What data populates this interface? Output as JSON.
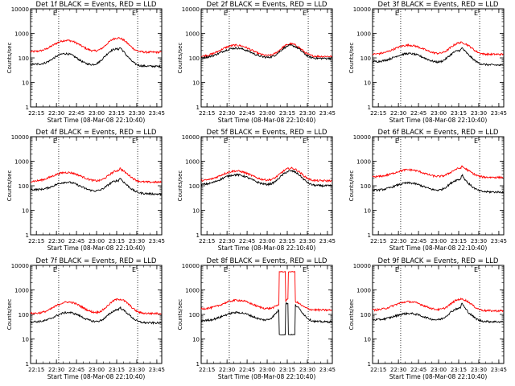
{
  "chart_data": {
    "type": "line",
    "common": {
      "xlabel": "Start Time (08-Mar-08 22:10:40)",
      "ylabel": "Counts/sec",
      "x_tick_labels": [
        "22:15",
        "22:30",
        "22:45",
        "23:00",
        "23:15",
        "23:30",
        "23:45"
      ],
      "x_tick_minutes": [
        4.33,
        19.33,
        34.33,
        49.33,
        64.33,
        79.33,
        94.33
      ],
      "xlim_minutes": [
        0,
        98
      ],
      "y_scale": "log",
      "ylim": [
        1,
        10000
      ],
      "y_tick_labels": [
        "1",
        "10",
        "100",
        "1000",
        "10000"
      ],
      "y_tick_values": [
        1,
        10,
        100,
        1000,
        10000
      ],
      "vertical_dotted_lines_minutes": [
        21,
        80
      ],
      "flag_labels": [
        "E",
        "E"
      ],
      "colors": {
        "events": "#000000",
        "lld": "#ff0000",
        "axes": "#000000"
      },
      "series_names": [
        "BLACK = Events",
        "RED = LLD"
      ]
    },
    "panels": [
      {
        "title": "Det 1f BLACK = Events, RED = LLD",
        "events": {
          "base": 55,
          "hump1": {
            "center": 26,
            "width": 7,
            "peak": 150
          },
          "hump2": {
            "center": 64,
            "width": 6,
            "peak": 230
          },
          "spike": {
            "at": 67,
            "peak": 270
          },
          "end": 45
        },
        "lld": {
          "base": 180,
          "hump1": {
            "center": 27,
            "width": 8,
            "peak": 520
          },
          "hump2": {
            "center": 65,
            "width": 6,
            "peak": 650
          },
          "spike": null,
          "end": 170
        }
      },
      {
        "title": "Det 2f BLACK = Events, RED = LLD",
        "events": {
          "base": 100,
          "hump1": {
            "center": 26,
            "width": 9,
            "peak": 250
          },
          "hump2": {
            "center": 67,
            "width": 6,
            "peak": 320
          },
          "spike": null,
          "end": 95
        },
        "lld": {
          "base": 115,
          "hump1": {
            "center": 26,
            "width": 9,
            "peak": 330
          },
          "hump2": {
            "center": 67,
            "width": 6,
            "peak": 370
          },
          "spike": null,
          "end": 115
        }
      },
      {
        "title": "Det 3f BLACK = Events, RED = LLD",
        "events": {
          "base": 70,
          "hump1": {
            "center": 27,
            "width": 9,
            "peak": 150
          },
          "hump2": {
            "center": 65,
            "width": 6,
            "peak": 200
          },
          "spike": {
            "at": 67,
            "peak": 260
          },
          "end": 50
        },
        "lld": {
          "base": 140,
          "hump1": {
            "center": 27,
            "width": 9,
            "peak": 330
          },
          "hump2": {
            "center": 66,
            "width": 6,
            "peak": 420
          },
          "spike": null,
          "end": 140
        }
      },
      {
        "title": "Det 4f BLACK = Events, RED = LLD",
        "events": {
          "base": 70,
          "hump1": {
            "center": 27,
            "width": 8,
            "peak": 140
          },
          "hump2": {
            "center": 65,
            "width": 6,
            "peak": 160
          },
          "spike": {
            "at": 67,
            "peak": 210
          },
          "end": 45
        },
        "lld": {
          "base": 150,
          "hump1": {
            "center": 27,
            "width": 9,
            "peak": 350
          },
          "hump2": {
            "center": 66,
            "width": 6,
            "peak": 420
          },
          "spike": {
            "at": 67,
            "peak": 520
          },
          "end": 140
        }
      },
      {
        "title": "Det 5f BLACK = Events, RED = LLD",
        "events": {
          "base": 110,
          "hump1": {
            "center": 26,
            "width": 9,
            "peak": 280
          },
          "hump2": {
            "center": 67,
            "width": 6,
            "peak": 400
          },
          "spike": null,
          "end": 100
        },
        "lld": {
          "base": 160,
          "hump1": {
            "center": 26,
            "width": 9,
            "peak": 400
          },
          "hump2": {
            "center": 67,
            "width": 6,
            "peak": 520
          },
          "spike": null,
          "end": 160
        }
      },
      {
        "title": "Det 6f BLACK = Events, RED = LLD",
        "events": {
          "base": 65,
          "hump1": {
            "center": 27,
            "width": 9,
            "peak": 130
          },
          "hump2": {
            "center": 65,
            "width": 6,
            "peak": 180
          },
          "spike": {
            "at": 67,
            "peak": 290
          },
          "end": 55
        },
        "lld": {
          "base": 230,
          "hump1": {
            "center": 27,
            "width": 9,
            "peak": 450
          },
          "hump2": {
            "center": 66,
            "width": 6,
            "peak": 520
          },
          "spike": {
            "at": 67,
            "peak": 620
          },
          "end": 220
        }
      },
      {
        "title": "Det 7f BLACK = Events, RED = LLD",
        "events": {
          "base": 50,
          "hump1": {
            "center": 28,
            "width": 8,
            "peak": 120
          },
          "hump2": {
            "center": 66,
            "width": 6,
            "peak": 160
          },
          "spike": {
            "at": 67,
            "peak": 190
          },
          "end": 45
        },
        "lld": {
          "base": 110,
          "hump1": {
            "center": 28,
            "width": 8,
            "peak": 320
          },
          "hump2": {
            "center": 66,
            "width": 6,
            "peak": 420
          },
          "spike": null,
          "end": 110
        }
      },
      {
        "title": "Det 8f BLACK = Events, RED = LLD",
        "events": {
          "base": 55,
          "hump1": {
            "center": 27,
            "width": 9,
            "peak": 120
          },
          "hump2": {
            "center": 66,
            "width": 6,
            "peak": 300
          },
          "spike": null,
          "end": 50
        },
        "lld": {
          "base": 170,
          "hump1": {
            "center": 27,
            "width": 9,
            "peak": 380
          },
          "hump2": {
            "center": 66,
            "width": 6,
            "peak": 400
          },
          "spike": null,
          "end": 150
        },
        "saturation_windows": [
          {
            "start": 58,
            "end": 63,
            "lld_level": 5500,
            "events_level": 15
          },
          {
            "start": 65,
            "end": 70,
            "lld_level": 5500,
            "events_level": 15
          }
        ]
      },
      {
        "title": "Det 9f BLACK = Events, RED = LLD",
        "events": {
          "base": 60,
          "hump1": {
            "center": 27,
            "width": 9,
            "peak": 110
          },
          "hump2": {
            "center": 65,
            "width": 6,
            "peak": 180
          },
          "spike": {
            "at": 67,
            "peak": 300
          },
          "end": 50
        },
        "lld": {
          "base": 150,
          "hump1": {
            "center": 27,
            "width": 9,
            "peak": 330
          },
          "hump2": {
            "center": 66,
            "width": 6,
            "peak": 420
          },
          "spike": null,
          "end": 140
        }
      }
    ]
  }
}
